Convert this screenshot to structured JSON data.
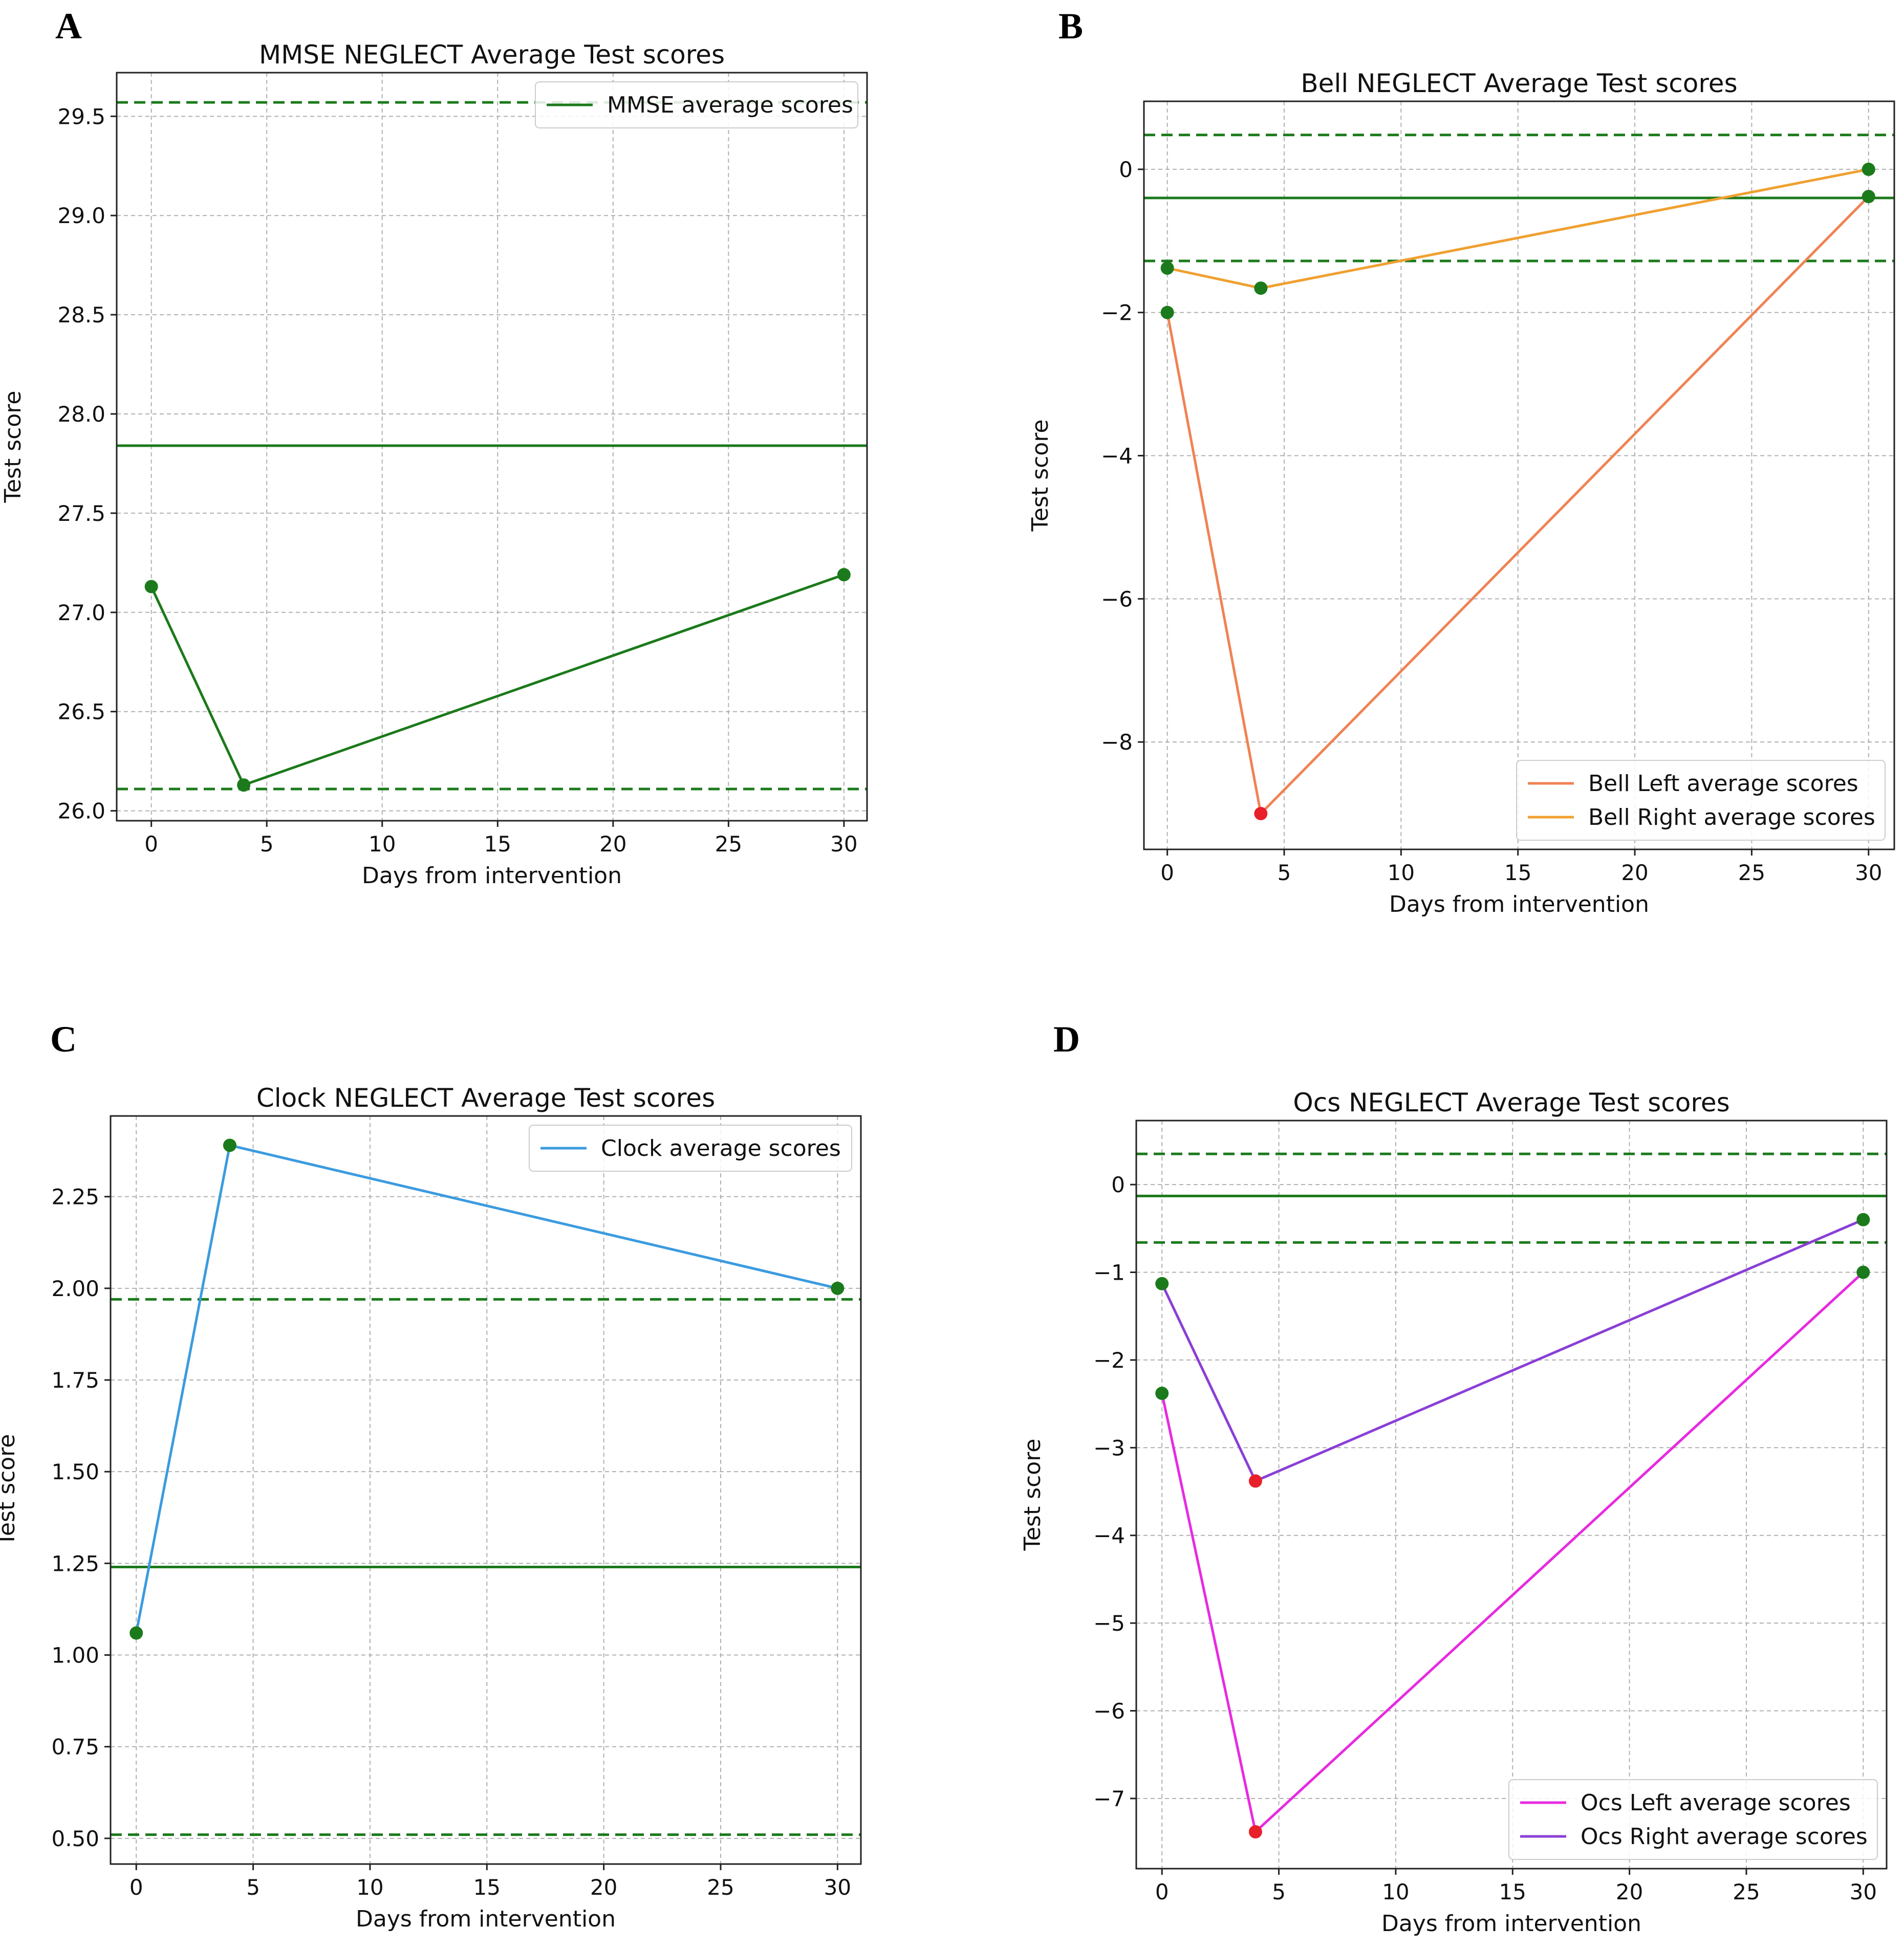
{
  "colors": {
    "reference": "#1b7a1b",
    "mmse": "#1b7a1b",
    "bell_left": "#f08254",
    "bell_right": "#f0a030",
    "clock": "#3b9be0",
    "ocs_left": "#e82ae0",
    "ocs_right": "#8a3fd6",
    "marker_normal": "#1b7a1b",
    "marker_low": "#e8202a",
    "grid": "#b0b0b0"
  },
  "chart_data": [
    {
      "panel": "A",
      "type": "line",
      "title": "MMSE NEGLECT Average Test scores",
      "xlabel": "Days from intervention",
      "ylabel": "Test score",
      "xlim": [
        -1.5,
        31.0
      ],
      "ylim": [
        25.95,
        29.72
      ],
      "xticks": [
        0,
        5,
        10,
        15,
        20,
        25,
        30
      ],
      "xtick_labels": [
        "0",
        "5",
        "10",
        "15",
        "20",
        "25",
        "30"
      ],
      "yticks": [
        26.0,
        26.5,
        27.0,
        27.5,
        28.0,
        28.5,
        29.0,
        29.5
      ],
      "ytick_labels": [
        "26.0",
        "26.5",
        "27.0",
        "27.5",
        "28.0",
        "28.5",
        "29.0",
        "29.5"
      ],
      "grid": true,
      "legend_position": "upper-right",
      "reference_lines": {
        "mean": 27.84,
        "upper": 29.57,
        "lower": 26.11
      },
      "series": [
        {
          "name": "MMSE average scores",
          "x": [
            0,
            4,
            30
          ],
          "y": [
            27.13,
            26.13,
            27.19
          ],
          "color_key": "mmse",
          "markers": [
            "normal",
            "normal",
            "normal"
          ]
        }
      ]
    },
    {
      "panel": "B",
      "type": "line",
      "title": "Bell NEGLECT Average Test scores",
      "xlabel": "Days from intervention",
      "ylabel": "Test score",
      "xlim": [
        -1.0,
        31.1
      ],
      "ylim": [
        -9.5,
        0.95
      ],
      "xticks": [
        0,
        5,
        10,
        15,
        20,
        25,
        30
      ],
      "xtick_labels": [
        "0",
        "5",
        "10",
        "15",
        "20",
        "25",
        "30"
      ],
      "yticks": [
        -8,
        -6,
        -4,
        -2,
        0
      ],
      "ytick_labels": [
        "−8",
        "−6",
        "−4",
        "−2",
        "0"
      ],
      "grid": true,
      "legend_position": "lower-right",
      "reference_lines": {
        "mean": -0.4,
        "upper": 0.48,
        "lower": -1.28
      },
      "series": [
        {
          "name": "Bell Left average scores",
          "x": [
            0,
            4,
            30
          ],
          "y": [
            -2.0,
            -9.0,
            -0.38
          ],
          "color_key": "bell_left",
          "markers": [
            "normal",
            "low",
            "normal"
          ]
        },
        {
          "name": "Bell Right average scores",
          "x": [
            0,
            4,
            30
          ],
          "y": [
            -1.38,
            -1.66,
            0.0
          ],
          "color_key": "bell_right",
          "markers": [
            "normal",
            "normal",
            "normal"
          ]
        }
      ]
    },
    {
      "panel": "C",
      "type": "line",
      "title": "Clock NEGLECT Average Test scores",
      "xlabel": "Days from intervention",
      "ylabel": "Test score",
      "xlim": [
        -1.1,
        31.0
      ],
      "ylim": [
        0.43,
        2.47
      ],
      "xticks": [
        0,
        5,
        10,
        15,
        20,
        25,
        30
      ],
      "xtick_labels": [
        "0",
        "5",
        "10",
        "15",
        "20",
        "25",
        "30"
      ],
      "yticks": [
        0.5,
        0.75,
        1.0,
        1.25,
        1.5,
        1.75,
        2.0,
        2.25
      ],
      "ytick_labels": [
        "0.50",
        "0.75",
        "1.00",
        "1.25",
        "1.50",
        "1.75",
        "2.00",
        "2.25"
      ],
      "grid": true,
      "legend_position": "upper-right",
      "reference_lines": {
        "mean": 1.24,
        "upper": 1.97,
        "lower": 0.51
      },
      "series": [
        {
          "name": "Clock average scores",
          "x": [
            0,
            4,
            30
          ],
          "y": [
            1.06,
            2.39,
            2.0
          ],
          "color_key": "clock",
          "markers": [
            "normal",
            "normal",
            "normal"
          ]
        }
      ]
    },
    {
      "panel": "D",
      "type": "line",
      "title": "Ocs NEGLECT Average Test scores",
      "xlabel": "Days from intervention",
      "ylabel": "Test score",
      "xlim": [
        -1.1,
        31.0
      ],
      "ylim": [
        -7.8,
        0.73
      ],
      "xticks": [
        0,
        5,
        10,
        15,
        20,
        25,
        30
      ],
      "xtick_labels": [
        "0",
        "5",
        "10",
        "15",
        "20",
        "25",
        "30"
      ],
      "yticks": [
        -7,
        -6,
        -5,
        -4,
        -3,
        -2,
        -1,
        0
      ],
      "ytick_labels": [
        "−7",
        "−6",
        "−5",
        "−4",
        "−3",
        "−2",
        "−1",
        "0"
      ],
      "grid": true,
      "legend_position": "lower-right",
      "reference_lines": {
        "mean": -0.13,
        "upper": 0.35,
        "lower": -0.66
      },
      "series": [
        {
          "name": "Ocs Left average scores",
          "x": [
            0,
            4,
            30
          ],
          "y": [
            -2.38,
            -7.38,
            -1.0
          ],
          "color_key": "ocs_left",
          "markers": [
            "normal",
            "low",
            "normal"
          ]
        },
        {
          "name": "Ocs Right average scores",
          "x": [
            0,
            4,
            30
          ],
          "y": [
            -1.13,
            -3.38,
            -0.4
          ],
          "color_key": "ocs_right",
          "markers": [
            "normal",
            "low",
            "normal"
          ]
        }
      ]
    }
  ]
}
